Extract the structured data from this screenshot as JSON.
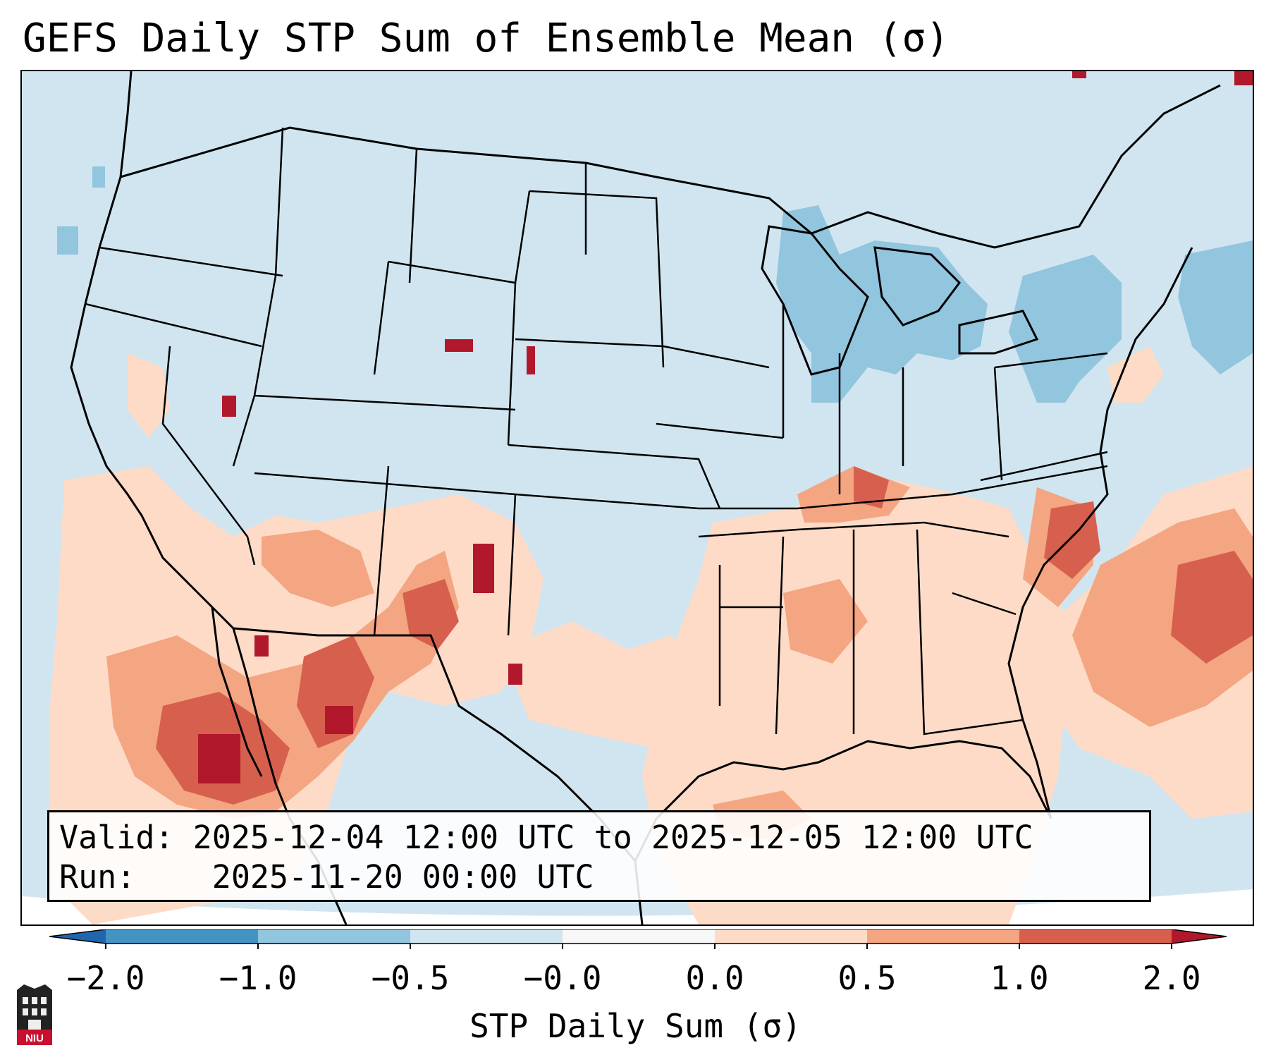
{
  "title": "GEFS Daily STP Sum of Ensemble Mean (σ)",
  "info": {
    "valid_label": "Valid:",
    "valid_value": "2025-12-04 12:00 UTC to 2025-12-05 12:00 UTC",
    "run_label": "Run:",
    "run_value": "2025-11-20 00:00 UTC"
  },
  "colorbar": {
    "label": "STP Daily Sum (σ)",
    "ticks": [
      "−2.0",
      "−1.0",
      "−0.5",
      "−0.0",
      "0.0",
      "0.5",
      "1.0",
      "2.0"
    ],
    "bins": [
      {
        "range": "< -2.0",
        "color": "#2166ac"
      },
      {
        "range": "-2.0 to -1.0",
        "color": "#4393c3"
      },
      {
        "range": "-1.0 to -0.5",
        "color": "#92c5de"
      },
      {
        "range": "-0.5 to -0.0",
        "color": "#d1e5f0"
      },
      {
        "range": "-0.0 to 0.0",
        "color": "#f7f7f7"
      },
      {
        "range": "0.0 to 0.5",
        "color": "#fddbc7"
      },
      {
        "range": "0.5 to 1.0",
        "color": "#f4a582"
      },
      {
        "range": "1.0 to 2.0",
        "color": "#d6604d"
      },
      {
        "range": "> 2.0",
        "color": "#b2182b"
      }
    ]
  },
  "colors": {
    "background_field": "#d1e5f0",
    "light_positive": "#fddbc7",
    "mid_positive": "#f4a582",
    "strong_positive": "#d6604d",
    "extreme_positive": "#b2182b",
    "negative": "#92c5de"
  },
  "anomaly_regions": [
    {
      "region": "Great Lakes / Michigan",
      "category": "-1.0 to -0.5"
    },
    {
      "region": "New York / New England",
      "category": "-1.0 to -0.5"
    },
    {
      "region": "Western Atlantic (offshore Northeast)",
      "category": "-1.0 to -0.5"
    },
    {
      "region": "Southwest US / Northern Mexico",
      "category": "0.5 to 2.0"
    },
    {
      "region": "Western Mexico",
      "category": "> 2.0"
    },
    {
      "region": "Eastern New Mexico",
      "category": "> 2.0"
    },
    {
      "region": "North Carolina",
      "category": "1.0 to 2.0"
    },
    {
      "region": "Ohio Valley / Tennessee Valley",
      "category": "0.5 to 1.0"
    },
    {
      "region": "Gulf Coast / Deep South",
      "category": "0.0 to 0.5"
    },
    {
      "region": "Western Atlantic (off Southeast)",
      "category": "1.0 to 2.0"
    },
    {
      "region": "Gulf of Mexico",
      "category": "0.0 to 0.5"
    }
  ],
  "logo": {
    "text": "NIU",
    "icon": "niu-logo-icon"
  }
}
